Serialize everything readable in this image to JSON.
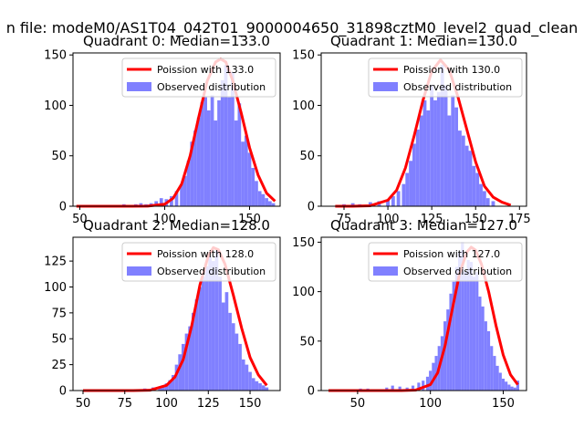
{
  "figure": {
    "suptitle": "n file: modeM0/AS1T04_042T01_9000004650_31898cztM0_level2_quad_clean"
  },
  "colors": {
    "hist": "#8080ff",
    "poisson": "#ff0000"
  },
  "chart_data": [
    {
      "type": "bar+line",
      "title": "Quadrant 0: Median=133.0",
      "median": 133.0,
      "xlim": [
        46,
        168
      ],
      "ylim": [
        0,
        152
      ],
      "xticks": [
        50,
        100,
        150
      ],
      "yticks": [
        0,
        50,
        100,
        150
      ],
      "legend": {
        "line_label": "Poission with 133.0",
        "hist_label": "Observed distribution",
        "placement": "top-right"
      },
      "hist": {
        "x": [
          76,
          79,
          83,
          86,
          89,
          92,
          95,
          98,
          101,
          104,
          107,
          110,
          112,
          114,
          116,
          118,
          120,
          122,
          124,
          126,
          128,
          130,
          132,
          134,
          136,
          138,
          140,
          142,
          144,
          146,
          148,
          150,
          152,
          154,
          156,
          158,
          160,
          162,
          164
        ],
        "counts": [
          2,
          1,
          2,
          3,
          2,
          3,
          5,
          8,
          7,
          10,
          15,
          22,
          30,
          45,
          64,
          75,
          88,
          103,
          108,
          95,
          110,
          85,
          105,
          125,
          140,
          108,
          133,
          85,
          102,
          64,
          70,
          53,
          38,
          25,
          15,
          12,
          8,
          5,
          3
        ]
      },
      "poisson": {
        "x": [
          48,
          60,
          70,
          80,
          90,
          100,
          105,
          110,
          115,
          120,
          125,
          130,
          133,
          136,
          140,
          145,
          150,
          155,
          160,
          165
        ],
        "y": [
          0,
          0,
          0,
          0,
          0.1,
          2,
          8,
          22,
          50,
          88,
          124,
          143,
          146,
          143,
          125,
          93,
          58,
          31,
          13,
          5
        ]
      }
    },
    {
      "type": "bar+line",
      "title": "Quadrant 1: Median=130.0",
      "median": 130.0,
      "xlim": [
        62,
        179
      ],
      "ylim": [
        0,
        152
      ],
      "xticks": [
        75,
        100,
        125,
        150,
        175
      ],
      "yticks": [
        0,
        50,
        100,
        150
      ],
      "legend": {
        "line_label": "Poission with 130.0",
        "hist_label": "Observed distribution",
        "placement": "top-right"
      },
      "hist": {
        "x": [
          75,
          80,
          84,
          90,
          95,
          100,
          103,
          106,
          109,
          111,
          113,
          115,
          117,
          119,
          121,
          123,
          125,
          127,
          129,
          131,
          133,
          135,
          137,
          139,
          141,
          143,
          145,
          147,
          149,
          151,
          153,
          155,
          157,
          160
        ],
        "counts": [
          2,
          3,
          2,
          4,
          5,
          6,
          10,
          15,
          22,
          33,
          45,
          62,
          76,
          90,
          105,
          95,
          120,
          105,
          113,
          140,
          120,
          90,
          110,
          98,
          75,
          70,
          60,
          55,
          40,
          33,
          22,
          15,
          8,
          5
        ]
      },
      "poisson": {
        "x": [
          70,
          80,
          90,
          100,
          105,
          110,
          115,
          120,
          125,
          130,
          135,
          140,
          145,
          150,
          155,
          160,
          165,
          170
        ],
        "y": [
          0,
          0,
          0.5,
          6,
          16,
          38,
          70,
          105,
          134,
          145,
          135,
          108,
          76,
          44,
          20,
          9,
          4,
          1
        ]
      }
    },
    {
      "type": "bar+line",
      "title": "Quadrant 2: Median=128.0",
      "median": 128.0,
      "xlim": [
        44,
        168
      ],
      "ylim": [
        0,
        148
      ],
      "xticks": [
        50,
        75,
        100,
        125,
        150
      ],
      "yticks": [
        0,
        25,
        50,
        75,
        100,
        125
      ],
      "legend": {
        "line_label": "Poission with 128.0",
        "hist_label": "Observed distribution",
        "placement": "top-right"
      },
      "hist": {
        "x": [
          87,
          92,
          96,
          98,
          100,
          102,
          104,
          106,
          108,
          110,
          112,
          114,
          116,
          118,
          120,
          122,
          124,
          126,
          128,
          130,
          132,
          134,
          136,
          138,
          140,
          142,
          144,
          146,
          148,
          150,
          152,
          154,
          156,
          158,
          160
        ],
        "counts": [
          2,
          3,
          4,
          5,
          7,
          10,
          15,
          25,
          35,
          45,
          55,
          62,
          75,
          88,
          100,
          110,
          120,
          130,
          125,
          135,
          110,
          85,
          95,
          75,
          65,
          55,
          45,
          30,
          25,
          18,
          12,
          9,
          7,
          5,
          3
        ]
      },
      "poisson": {
        "x": [
          50,
          60,
          70,
          80,
          90,
          100,
          105,
          110,
          115,
          120,
          125,
          128,
          131,
          135,
          140,
          145,
          150,
          155,
          160
        ],
        "y": [
          0,
          0,
          0,
          0,
          0.3,
          5,
          13,
          30,
          62,
          102,
          130,
          138,
          136,
          122,
          92,
          60,
          32,
          15,
          5
        ]
      }
    },
    {
      "type": "bar+line",
      "title": "Quadrant 3: Median=127.0",
      "median": 127.0,
      "xlim": [
        25,
        166
      ],
      "ylim": [
        0,
        155
      ],
      "xticks": [
        50,
        100,
        150
      ],
      "yticks": [
        0,
        50,
        100,
        150
      ],
      "legend": {
        "line_label": "Poission with 127.0",
        "hist_label": "Observed distribution",
        "placement": "top-right"
      },
      "hist": {
        "x": [
          46,
          52,
          57,
          65,
          70,
          74,
          79,
          84,
          88,
          92,
          95,
          98,
          100,
          102,
          104,
          106,
          108,
          110,
          112,
          114,
          116,
          118,
          120,
          122,
          124,
          126,
          128,
          130,
          132,
          134,
          136,
          138,
          140,
          142,
          144,
          146,
          148,
          150,
          152,
          154,
          156,
          158,
          160
        ],
        "counts": [
          1,
          2,
          2,
          1,
          3,
          5,
          4,
          3,
          5,
          8,
          10,
          14,
          20,
          28,
          35,
          45,
          55,
          70,
          82,
          98,
          110,
          125,
          140,
          150,
          120,
          132,
          130,
          115,
          120,
          95,
          85,
          70,
          60,
          45,
          35,
          25,
          18,
          12,
          9,
          6,
          4,
          3,
          10
        ]
      },
      "poisson": {
        "x": [
          30,
          50,
          70,
          80,
          90,
          100,
          105,
          110,
          115,
          120,
          125,
          128,
          131,
          135,
          140,
          145,
          150,
          155,
          160
        ],
        "y": [
          0,
          0,
          0,
          0,
          0.5,
          6,
          18,
          45,
          82,
          118,
          140,
          145,
          142,
          128,
          100,
          66,
          36,
          16,
          6
        ]
      }
    }
  ]
}
